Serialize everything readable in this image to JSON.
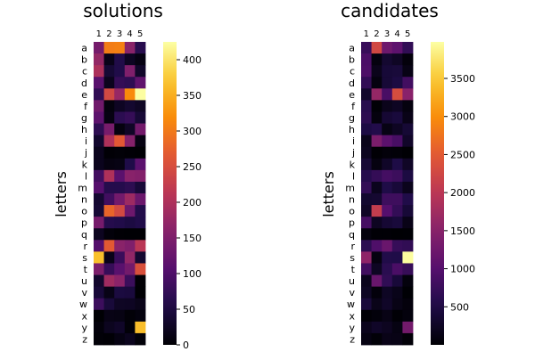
{
  "chart_data": [
    {
      "type": "heatmap",
      "title": "solutions",
      "ylabel": "letters",
      "columns": [
        "1",
        "2",
        "3",
        "4",
        "5"
      ],
      "rows": [
        "a",
        "b",
        "c",
        "d",
        "e",
        "f",
        "g",
        "h",
        "i",
        "j",
        "k",
        "l",
        "m",
        "n",
        "o",
        "p",
        "q",
        "r",
        "s",
        "t",
        "u",
        "v",
        "w",
        "x",
        "y",
        "z"
      ],
      "colorbar": {
        "min": 0,
        "max": 425,
        "ticks": [
          0,
          50,
          100,
          150,
          200,
          250,
          300,
          350,
          400
        ]
      },
      "values": [
        [
          141,
          304,
          307,
          163,
          64
        ],
        [
          173,
          16,
          57,
          24,
          11
        ],
        [
          198,
          40,
          56,
          152,
          31
        ],
        [
          111,
          20,
          75,
          69,
          118
        ],
        [
          72,
          242,
          177,
          318,
          424
        ],
        [
          136,
          8,
          25,
          35,
          26
        ],
        [
          115,
          11,
          67,
          76,
          41
        ],
        [
          69,
          144,
          9,
          28,
          139
        ],
        [
          34,
          201,
          266,
          158,
          11
        ],
        [
          20,
          2,
          3,
          2,
          0
        ],
        [
          20,
          10,
          12,
          55,
          113
        ],
        [
          88,
          201,
          112,
          162,
          156
        ],
        [
          107,
          61,
          61,
          68,
          42
        ],
        [
          37,
          87,
          139,
          182,
          130
        ],
        [
          41,
          279,
          244,
          132,
          58
        ],
        [
          142,
          61,
          57,
          50,
          56
        ],
        [
          23,
          5,
          1,
          0,
          0
        ],
        [
          105,
          267,
          163,
          152,
          212
        ],
        [
          366,
          16,
          80,
          171,
          36
        ],
        [
          149,
          77,
          111,
          139,
          253
        ],
        [
          33,
          185,
          165,
          82,
          1
        ],
        [
          43,
          15,
          49,
          46,
          0
        ],
        [
          83,
          44,
          26,
          25,
          17
        ],
        [
          0,
          14,
          12,
          3,
          8
        ],
        [
          6,
          22,
          29,
          3,
          364
        ],
        [
          3,
          2,
          11,
          20,
          4
        ]
      ]
    },
    {
      "type": "heatmap",
      "title": "candidates",
      "ylabel": "letters",
      "columns": [
        "1",
        "2",
        "3",
        "4",
        "5"
      ],
      "rows": [
        "a",
        "b",
        "c",
        "d",
        "e",
        "f",
        "g",
        "h",
        "i",
        "j",
        "k",
        "l",
        "m",
        "n",
        "o",
        "p",
        "q",
        "r",
        "s",
        "t",
        "u",
        "v",
        "w",
        "x",
        "y",
        "z"
      ],
      "colorbar": {
        "min": 0,
        "max": 3980,
        "ticks": [
          500,
          1000,
          1500,
          2000,
          2500,
          3000,
          3500
        ]
      },
      "values": [
        [
          737,
          2263,
          1236,
          1074,
          680
        ],
        [
          909,
          81,
          335,
          243,
          59
        ],
        [
          922,
          176,
          392,
          411,
          127
        ],
        [
          685,
          84,
          390,
          471,
          823
        ],
        [
          303,
          1628,
          882,
          2327,
          1522
        ],
        [
          598,
          24,
          178,
          233,
          82
        ],
        [
          638,
          76,
          364,
          423,
          143
        ],
        [
          489,
          546,
          120,
          235,
          370
        ],
        [
          165,
          1383,
          1051,
          880,
          280
        ],
        [
          202,
          11,
          46,
          29,
          3
        ],
        [
          376,
          95,
          272,
          503,
          259
        ],
        [
          577,
          699,
          848,
          771,
          475
        ],
        [
          693,
          188,
          511,
          402,
          182
        ],
        [
          325,
          345,
          788,
          788,
          530
        ],
        [
          262,
          2096,
          993,
          696,
          389
        ],
        [
          859,
          231,
          364,
          418,
          147
        ],
        [
          78,
          15,
          13,
          2,
          4
        ],
        [
          628,
          940,
          1198,
          719,
          673
        ],
        [
          1565,
          93,
          533,
          516,
          3958
        ],
        [
          815,
          239,
          616,
          898,
          727
        ],
        [
          189,
          1187,
          667,
          401,
          67
        ],
        [
          242,
          52,
          240,
          156,
          4
        ],
        [
          413,
          163,
          271,
          128,
          64
        ],
        [
          16,
          57,
          133,
          12,
          70
        ],
        [
          181,
          271,
          213,
          108,
          1301
        ],
        [
          105,
          29,
          142,
          126,
          32
        ]
      ]
    }
  ]
}
